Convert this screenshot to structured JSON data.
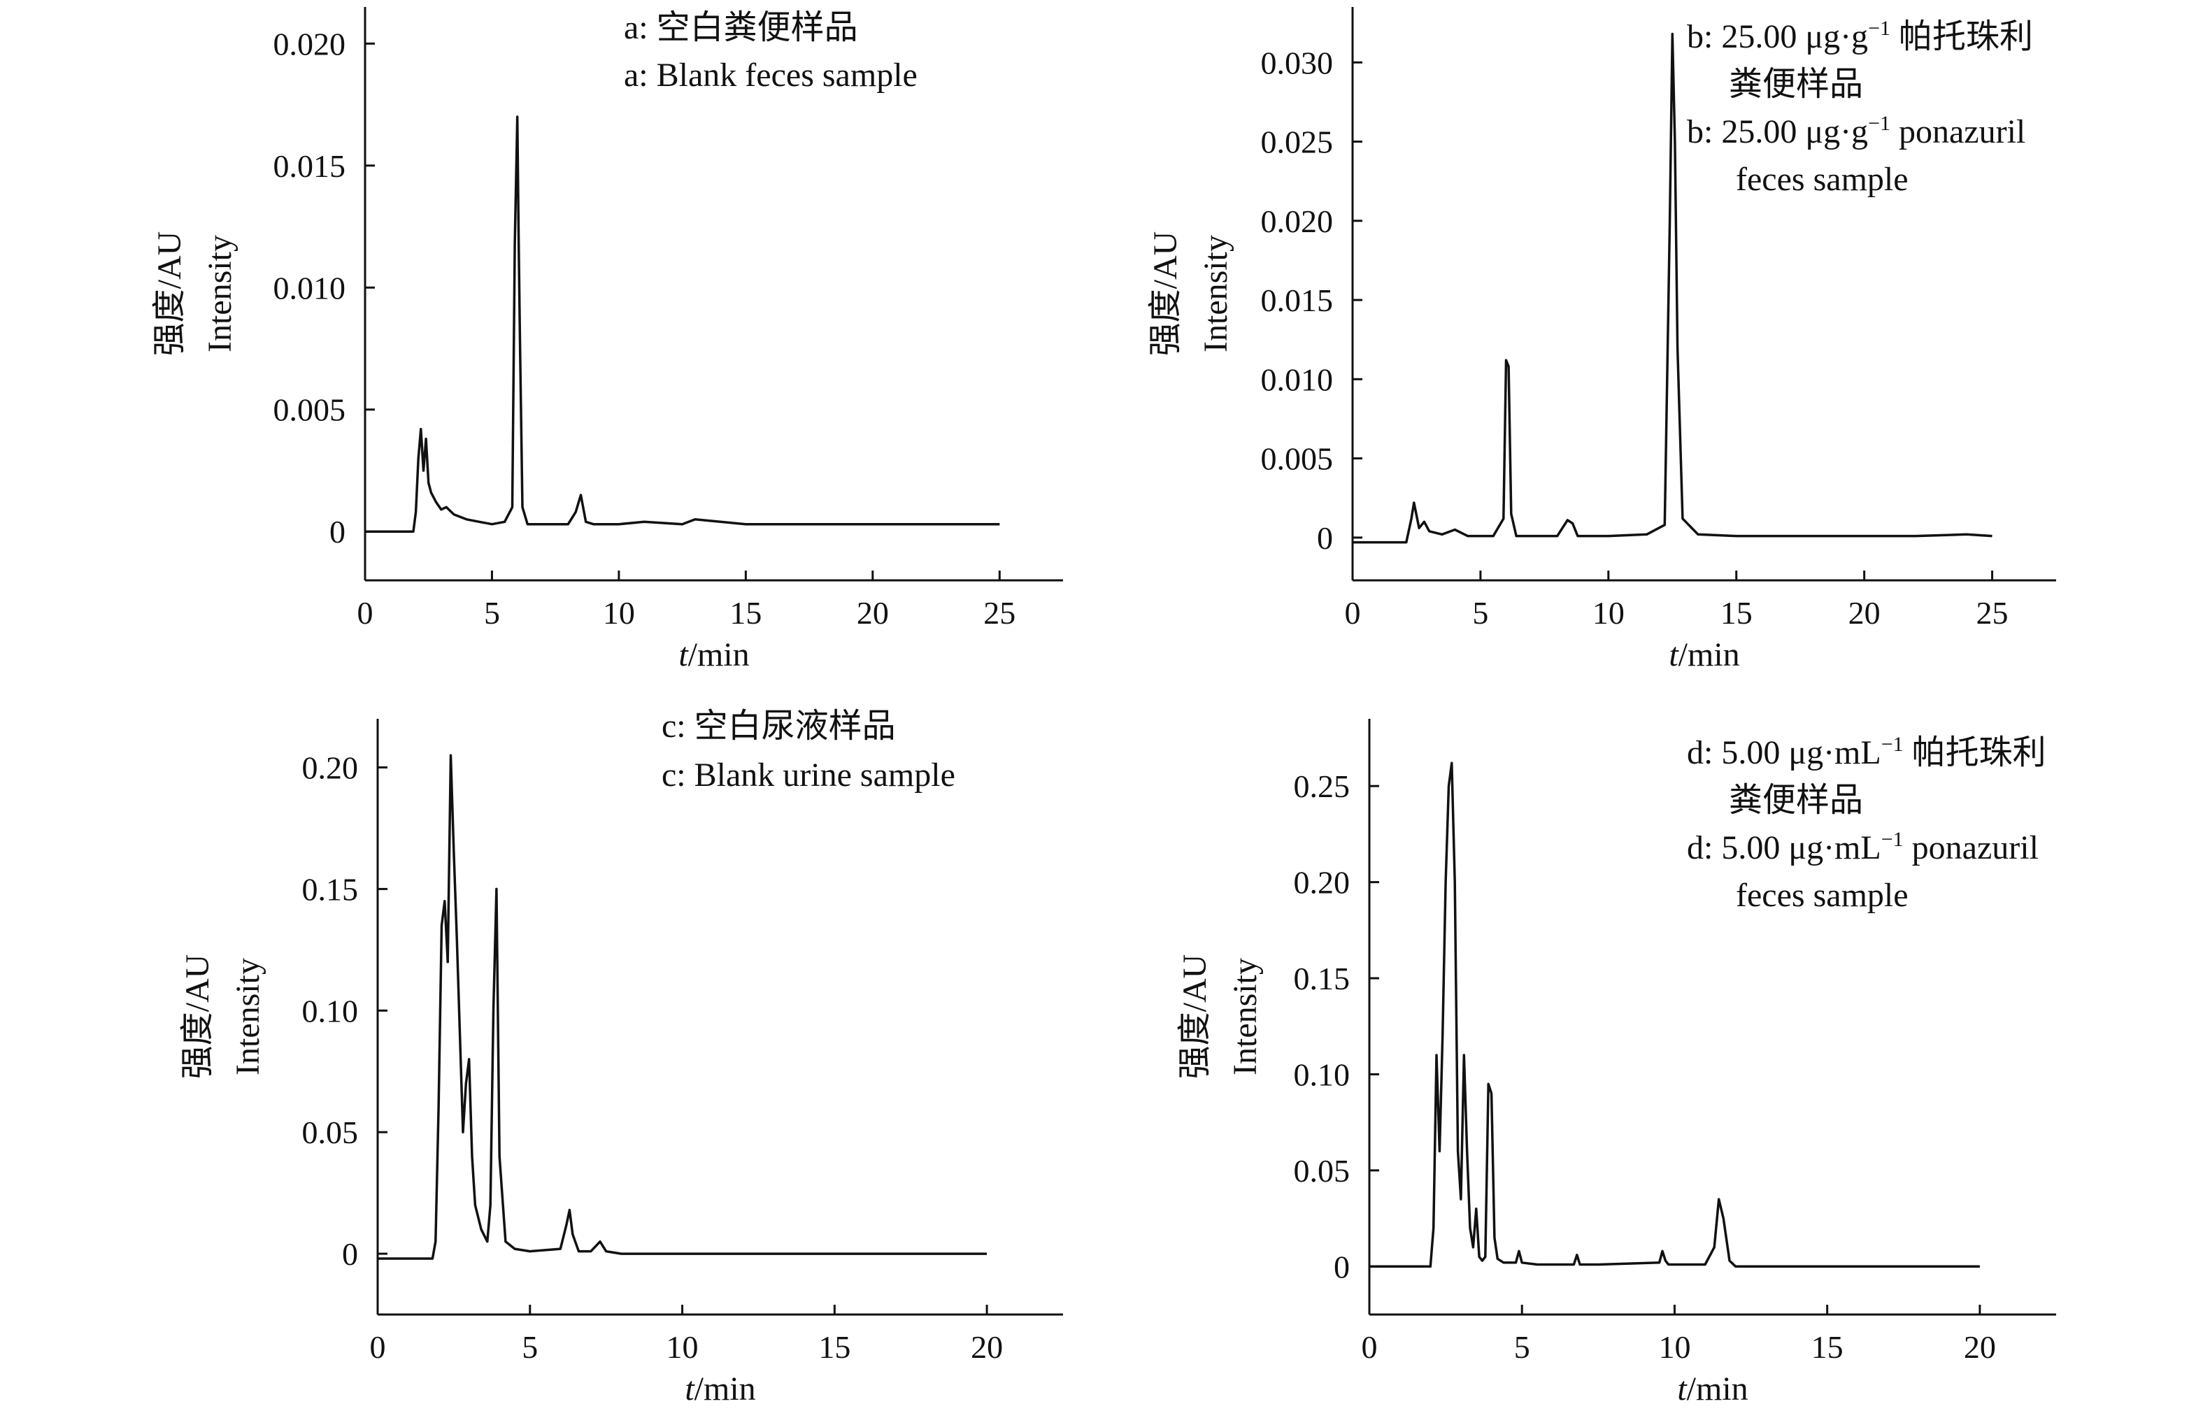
{
  "chart_data": [
    {
      "id": "a",
      "type": "line",
      "legend": [
        "a: 空白粪便样品",
        "a: Blank feces sample"
      ],
      "ylabel": [
        "强度/AU",
        "Intensity"
      ],
      "xlabel": {
        "var": "t",
        "unit": "/min"
      },
      "xlim": [
        0,
        27.5
      ],
      "ylim": [
        -0.002,
        0.0215
      ],
      "xticks": [
        0,
        5,
        10,
        15,
        20,
        25
      ],
      "yticks": [
        0,
        0.005,
        0.01,
        0.015,
        0.02
      ],
      "ytick_labels": [
        "0",
        "0.005",
        "0.010",
        "0.015",
        "0.020"
      ],
      "series": [
        {
          "x": [
            0,
            1.9,
            2.0,
            2.1,
            2.2,
            2.3,
            2.4,
            2.5,
            2.6,
            2.8,
            3.0,
            3.2,
            3.5,
            4.0,
            4.5,
            5.0,
            5.5,
            5.8,
            5.9,
            6.0,
            6.05,
            6.1,
            6.2,
            6.4,
            7.0,
            8.0,
            8.3,
            8.5,
            8.7,
            9.0,
            10.0,
            11.0,
            12.5,
            13.0,
            15.0,
            18.0,
            20.0,
            22.5,
            25.0
          ],
          "y": [
            0,
            0,
            0.0008,
            0.003,
            0.0042,
            0.0025,
            0.0038,
            0.002,
            0.0016,
            0.0012,
            0.0009,
            0.001,
            0.0007,
            0.0005,
            0.0004,
            0.0003,
            0.0004,
            0.001,
            0.0118,
            0.017,
            0.012,
            0.008,
            0.001,
            0.0003,
            0.0003,
            0.0003,
            0.0008,
            0.0015,
            0.0004,
            0.0003,
            0.0003,
            0.0004,
            0.0003,
            0.0005,
            0.0003,
            0.0003,
            0.0003,
            0.0003,
            0.0003
          ]
        }
      ]
    },
    {
      "id": "b",
      "type": "line",
      "legend": [
        "b: 25.00 μg·g⁻¹ 帕托珠利",
        "粪便样品",
        "b: 25.00 μg·g⁻¹ ponazuril",
        "feces sample"
      ],
      "ylabel": [
        "强度/AU",
        "Intensity"
      ],
      "xlabel": {
        "var": "t",
        "unit": "/min"
      },
      "xlim": [
        0,
        27.5
      ],
      "ylim": [
        -0.0027,
        0.0335
      ],
      "xticks": [
        0,
        5,
        10,
        15,
        20,
        25
      ],
      "yticks": [
        0,
        0.005,
        0.01,
        0.015,
        0.02,
        0.025,
        0.03
      ],
      "ytick_labels": [
        "0",
        "0.005",
        "0.010",
        "0.015",
        "0.020",
        "0.025",
        "0.030"
      ],
      "series": [
        {
          "x": [
            0,
            2.1,
            2.3,
            2.4,
            2.6,
            2.8,
            3.0,
            3.5,
            4.0,
            4.5,
            5.5,
            5.9,
            6.0,
            6.1,
            6.2,
            6.4,
            7.0,
            8.0,
            8.4,
            8.6,
            8.8,
            10.0,
            11.5,
            12.2,
            12.4,
            12.5,
            12.6,
            12.7,
            12.9,
            13.5,
            15.0,
            20.0,
            22.0,
            24.0,
            25.0
          ],
          "y": [
            -0.0003,
            -0.0003,
            0.0012,
            0.0022,
            0.0006,
            0.001,
            0.0004,
            0.0002,
            0.0005,
            0.0001,
            0.0001,
            0.0012,
            0.0112,
            0.0108,
            0.0015,
            0.0001,
            0.0001,
            0.0001,
            0.0011,
            0.0009,
            0.0001,
            0.0001,
            0.0002,
            0.0008,
            0.02,
            0.0318,
            0.025,
            0.012,
            0.0012,
            0.0002,
            0.0001,
            0.0001,
            0.0001,
            0.0002,
            0.0001
          ]
        }
      ]
    },
    {
      "id": "c",
      "type": "line",
      "legend": [
        "c: 空白尿液样品",
        "c: Blank urine sample"
      ],
      "ylabel": [
        "强度/AU",
        "Intensity"
      ],
      "xlabel": {
        "var": "t",
        "unit": "/min"
      },
      "xlim": [
        0,
        22.5
      ],
      "ylim": [
        -0.025,
        0.22
      ],
      "xticks": [
        0,
        5,
        10,
        15,
        20
      ],
      "yticks": [
        0,
        0.05,
        0.1,
        0.15,
        0.2
      ],
      "ytick_labels": [
        "0",
        "0.05",
        "0.10",
        "0.15",
        "0.20"
      ],
      "series": [
        {
          "x": [
            0,
            1.8,
            1.9,
            2.0,
            2.1,
            2.2,
            2.3,
            2.4,
            2.5,
            2.6,
            2.7,
            2.8,
            2.9,
            3.0,
            3.1,
            3.2,
            3.4,
            3.6,
            3.7,
            3.8,
            3.9,
            4.0,
            4.2,
            4.5,
            5.0,
            6.0,
            6.2,
            6.3,
            6.4,
            6.6,
            7.0,
            7.3,
            7.5,
            8.0,
            10.0,
            15.0,
            20.0
          ],
          "y": [
            -0.002,
            -0.002,
            0.005,
            0.06,
            0.135,
            0.145,
            0.12,
            0.205,
            0.165,
            0.13,
            0.09,
            0.05,
            0.07,
            0.08,
            0.04,
            0.02,
            0.01,
            0.005,
            0.02,
            0.1,
            0.15,
            0.04,
            0.005,
            0.002,
            0.001,
            0.002,
            0.012,
            0.018,
            0.008,
            0.001,
            0.001,
            0.005,
            0.001,
            0.0,
            0.0,
            0.0,
            0.0
          ]
        }
      ]
    },
    {
      "id": "d",
      "type": "line",
      "legend": [
        "d: 5.00 μg·mL⁻¹ 帕托珠利",
        "粪便样品",
        "d: 5.00 μg·mL⁻¹ ponazuril",
        "feces sample"
      ],
      "ylabel": [
        "强度/AU",
        "Intensity"
      ],
      "xlabel": {
        "var": "t",
        "unit": "/min"
      },
      "xlim": [
        0,
        22.5
      ],
      "ylim": [
        -0.025,
        0.285
      ],
      "xticks": [
        0,
        5,
        10,
        15,
        20
      ],
      "yticks": [
        0,
        0.05,
        0.1,
        0.15,
        0.2,
        0.25
      ],
      "ytick_labels": [
        "0",
        "0.05",
        "0.10",
        "0.15",
        "0.20",
        "0.25"
      ],
      "series": [
        {
          "x": [
            0,
            2.0,
            2.1,
            2.2,
            2.3,
            2.4,
            2.5,
            2.6,
            2.7,
            2.8,
            2.9,
            3.0,
            3.1,
            3.2,
            3.3,
            3.4,
            3.5,
            3.6,
            3.7,
            3.8,
            3.9,
            4.0,
            4.1,
            4.2,
            4.4,
            4.8,
            4.9,
            5.0,
            5.5,
            6.7,
            6.8,
            6.9,
            7.5,
            9.5,
            9.6,
            9.7,
            9.8,
            11.0,
            11.3,
            11.45,
            11.6,
            11.8,
            12.0,
            15.0,
            20.0
          ],
          "y": [
            0,
            0,
            0.02,
            0.11,
            0.06,
            0.12,
            0.2,
            0.25,
            0.262,
            0.2,
            0.06,
            0.035,
            0.11,
            0.06,
            0.02,
            0.01,
            0.03,
            0.005,
            0.003,
            0.005,
            0.095,
            0.09,
            0.015,
            0.004,
            0.002,
            0.002,
            0.008,
            0.002,
            0.001,
            0.001,
            0.006,
            0.001,
            0.001,
            0.002,
            0.008,
            0.003,
            0.001,
            0.001,
            0.01,
            0.035,
            0.025,
            0.003,
            0.0,
            0.0,
            0.0
          ]
        }
      ]
    }
  ]
}
